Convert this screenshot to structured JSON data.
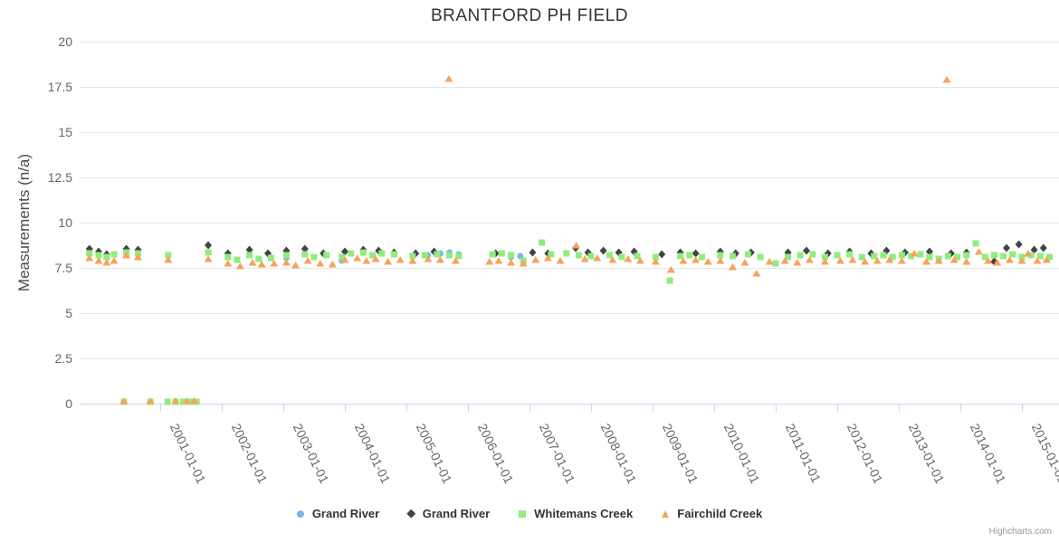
{
  "credits": "Highcharts.com",
  "chart_data": {
    "type": "scatter",
    "title": "BRANTFORD PH FIELD",
    "x_unit": "decimal_year",
    "xAxis": {
      "tick_years": [
        2001,
        2002,
        2003,
        2004,
        2005,
        2006,
        2007,
        2008,
        2009,
        2010,
        2011,
        2012,
        2013,
        2014,
        2015
      ],
      "tick_labels": [
        "2001-01-01",
        "2002-01-01",
        "2003-01-01",
        "2004-01-01",
        "2005-01-01",
        "2006-01-01",
        "2007-01-01",
        "2008-01-01",
        "2009-01-01",
        "2010-01-01",
        "2011-01-01",
        "2012-01-01",
        "2013-01-01",
        "2014-01-01",
        "2015-01-01"
      ],
      "label_rotation_deg": 64,
      "range": [
        1999.7,
        2015.6
      ]
    },
    "yAxis": {
      "title": "Measurements (n/a)",
      "ticks": [
        0,
        2.5,
        5,
        7.5,
        10,
        12.5,
        15,
        17.5,
        20
      ],
      "min": 0,
      "max": 20,
      "grid": true
    },
    "legend_position": "bottom-center",
    "colors": {
      "grid": "#e6e6e6",
      "axis_line": "#ccd6eb",
      "axis_label": "#666666",
      "title_text": "#333333"
    },
    "series": [
      {
        "name": "Grand River",
        "marker": "circle",
        "color": "#7cb5ec",
        "points": [
          [
            2003.05,
            8.05
          ],
          [
            2003.95,
            7.9
          ],
          [
            2005.35,
            8.2
          ],
          [
            2005.55,
            8.3
          ],
          [
            2005.7,
            8.35
          ],
          [
            2005.85,
            8.25
          ],
          [
            2006.7,
            8.1
          ],
          [
            2006.85,
            8.15
          ]
        ]
      },
      {
        "name": "Grand River",
        "marker": "diamond",
        "color": "#434348",
        "points": [
          [
            1999.85,
            8.55
          ],
          [
            2000.0,
            8.4
          ],
          [
            2000.13,
            8.25
          ],
          [
            2000.45,
            8.55
          ],
          [
            2000.64,
            8.5
          ],
          [
            2001.78,
            8.75
          ],
          [
            2002.1,
            8.3
          ],
          [
            2002.45,
            8.5
          ],
          [
            2002.75,
            8.3
          ],
          [
            2003.05,
            8.45
          ],
          [
            2003.35,
            8.55
          ],
          [
            2003.65,
            8.3
          ],
          [
            2004.0,
            8.4
          ],
          [
            2004.3,
            8.5
          ],
          [
            2004.55,
            8.45
          ],
          [
            2004.8,
            8.35
          ],
          [
            2005.15,
            8.3
          ],
          [
            2005.45,
            8.4
          ],
          [
            2006.45,
            8.3
          ],
          [
            2007.05,
            8.35
          ],
          [
            2007.3,
            8.3
          ],
          [
            2007.75,
            8.6
          ],
          [
            2007.95,
            8.35
          ],
          [
            2008.2,
            8.45
          ],
          [
            2008.45,
            8.35
          ],
          [
            2008.7,
            8.4
          ],
          [
            2009.15,
            8.25
          ],
          [
            2009.45,
            8.35
          ],
          [
            2009.7,
            8.3
          ],
          [
            2010.1,
            8.4
          ],
          [
            2010.35,
            8.3
          ],
          [
            2010.6,
            8.35
          ],
          [
            2011.2,
            8.35
          ],
          [
            2011.5,
            8.45
          ],
          [
            2011.85,
            8.3
          ],
          [
            2012.2,
            8.4
          ],
          [
            2012.55,
            8.3
          ],
          [
            2012.8,
            8.45
          ],
          [
            2013.1,
            8.35
          ],
          [
            2013.5,
            8.4
          ],
          [
            2013.85,
            8.3
          ],
          [
            2014.1,
            8.35
          ],
          [
            2014.55,
            7.85
          ],
          [
            2014.75,
            8.6
          ],
          [
            2014.95,
            8.8
          ],
          [
            2015.2,
            8.5
          ],
          [
            2015.35,
            8.6
          ]
        ]
      },
      {
        "name": "Whitemans Creek",
        "marker": "square",
        "color": "#90ed7d",
        "points": [
          [
            2000.41,
            0.1
          ],
          [
            2000.84,
            0.1
          ],
          [
            2001.12,
            0.1
          ],
          [
            2001.25,
            0.1
          ],
          [
            2001.37,
            0.1
          ],
          [
            2001.49,
            0.1
          ],
          [
            2001.59,
            0.1
          ],
          [
            1999.85,
            8.3
          ],
          [
            2000.0,
            8.2
          ],
          [
            2000.13,
            8.1
          ],
          [
            2000.25,
            8.25
          ],
          [
            2000.45,
            8.35
          ],
          [
            2000.64,
            8.3
          ],
          [
            2001.13,
            8.2
          ],
          [
            2001.78,
            8.35
          ],
          [
            2002.1,
            8.1
          ],
          [
            2002.25,
            7.95
          ],
          [
            2002.45,
            8.2
          ],
          [
            2002.6,
            8.0
          ],
          [
            2002.8,
            8.05
          ],
          [
            2003.05,
            8.2
          ],
          [
            2003.35,
            8.25
          ],
          [
            2003.5,
            8.1
          ],
          [
            2003.7,
            8.2
          ],
          [
            2003.95,
            8.1
          ],
          [
            2004.1,
            8.3
          ],
          [
            2004.3,
            8.35
          ],
          [
            2004.45,
            8.2
          ],
          [
            2004.6,
            8.3
          ],
          [
            2004.8,
            8.25
          ],
          [
            2005.1,
            8.15
          ],
          [
            2005.3,
            8.2
          ],
          [
            2005.5,
            8.25
          ],
          [
            2005.7,
            8.2
          ],
          [
            2005.85,
            8.15
          ],
          [
            2006.4,
            8.25
          ],
          [
            2006.55,
            8.3
          ],
          [
            2006.7,
            8.2
          ],
          [
            2006.9,
            7.9
          ],
          [
            2007.2,
            8.9
          ],
          [
            2007.35,
            8.25
          ],
          [
            2007.6,
            8.3
          ],
          [
            2007.8,
            8.2
          ],
          [
            2008.0,
            8.15
          ],
          [
            2008.3,
            8.2
          ],
          [
            2008.5,
            8.1
          ],
          [
            2008.75,
            8.15
          ],
          [
            2009.05,
            8.1
          ],
          [
            2009.28,
            6.8
          ],
          [
            2009.45,
            8.15
          ],
          [
            2009.6,
            8.2
          ],
          [
            2009.8,
            8.1
          ],
          [
            2010.1,
            8.2
          ],
          [
            2010.3,
            8.15
          ],
          [
            2010.55,
            8.25
          ],
          [
            2010.75,
            8.1
          ],
          [
            2011.0,
            7.75
          ],
          [
            2011.2,
            8.1
          ],
          [
            2011.4,
            8.2
          ],
          [
            2011.6,
            8.25
          ],
          [
            2011.8,
            8.1
          ],
          [
            2012.0,
            8.2
          ],
          [
            2012.2,
            8.25
          ],
          [
            2012.4,
            8.1
          ],
          [
            2012.6,
            8.15
          ],
          [
            2012.75,
            8.2
          ],
          [
            2012.9,
            8.1
          ],
          [
            2013.05,
            8.2
          ],
          [
            2013.2,
            8.15
          ],
          [
            2013.35,
            8.25
          ],
          [
            2013.5,
            8.1
          ],
          [
            2013.65,
            8.0
          ],
          [
            2013.8,
            8.15
          ],
          [
            2013.95,
            8.1
          ],
          [
            2014.1,
            8.2
          ],
          [
            2014.25,
            8.85
          ],
          [
            2014.4,
            8.1
          ],
          [
            2014.55,
            8.2
          ],
          [
            2014.7,
            8.15
          ],
          [
            2014.85,
            8.25
          ],
          [
            2015.0,
            8.1
          ],
          [
            2015.15,
            8.2
          ],
          [
            2015.3,
            8.15
          ],
          [
            2015.45,
            8.1
          ]
        ]
      },
      {
        "name": "Fairchild Creek",
        "marker": "triangle",
        "color": "#f7a35c",
        "points": [
          [
            2000.41,
            0.15
          ],
          [
            2000.84,
            0.15
          ],
          [
            2001.25,
            0.15
          ],
          [
            2001.43,
            0.15
          ],
          [
            2001.55,
            0.15
          ],
          [
            2005.69,
            17.95
          ],
          [
            2013.78,
            17.9
          ],
          [
            1999.85,
            8.05
          ],
          [
            2000.0,
            7.9
          ],
          [
            2000.13,
            7.8
          ],
          [
            2000.25,
            7.9
          ],
          [
            2000.45,
            8.2
          ],
          [
            2000.64,
            8.1
          ],
          [
            2001.13,
            7.95
          ],
          [
            2001.78,
            8.0
          ],
          [
            2002.1,
            7.75
          ],
          [
            2002.3,
            7.6
          ],
          [
            2002.5,
            7.8
          ],
          [
            2002.65,
            7.7
          ],
          [
            2002.85,
            7.75
          ],
          [
            2003.05,
            7.8
          ],
          [
            2003.2,
            7.65
          ],
          [
            2003.4,
            7.9
          ],
          [
            2003.6,
            7.75
          ],
          [
            2003.8,
            7.7
          ],
          [
            2004.0,
            7.95
          ],
          [
            2004.2,
            8.05
          ],
          [
            2004.35,
            7.9
          ],
          [
            2004.5,
            8.0
          ],
          [
            2004.7,
            7.85
          ],
          [
            2004.9,
            7.95
          ],
          [
            2005.1,
            7.9
          ],
          [
            2005.35,
            8.0
          ],
          [
            2005.55,
            7.95
          ],
          [
            2005.8,
            7.9
          ],
          [
            2006.35,
            7.85
          ],
          [
            2006.5,
            7.9
          ],
          [
            2006.7,
            7.8
          ],
          [
            2006.9,
            7.75
          ],
          [
            2007.1,
            7.95
          ],
          [
            2007.3,
            8.05
          ],
          [
            2007.5,
            7.9
          ],
          [
            2007.76,
            8.75
          ],
          [
            2007.9,
            8.0
          ],
          [
            2008.1,
            8.05
          ],
          [
            2008.35,
            7.95
          ],
          [
            2008.6,
            8.0
          ],
          [
            2008.8,
            7.9
          ],
          [
            2009.05,
            7.85
          ],
          [
            2009.3,
            7.4
          ],
          [
            2009.5,
            7.9
          ],
          [
            2009.7,
            7.95
          ],
          [
            2009.9,
            7.85
          ],
          [
            2010.1,
            7.9
          ],
          [
            2010.3,
            7.55
          ],
          [
            2010.5,
            7.8
          ],
          [
            2010.69,
            7.2
          ],
          [
            2010.9,
            7.85
          ],
          [
            2011.15,
            7.9
          ],
          [
            2011.35,
            7.8
          ],
          [
            2011.55,
            7.95
          ],
          [
            2011.8,
            7.85
          ],
          [
            2012.05,
            7.9
          ],
          [
            2012.25,
            7.95
          ],
          [
            2012.45,
            7.85
          ],
          [
            2012.65,
            7.9
          ],
          [
            2012.85,
            7.95
          ],
          [
            2013.05,
            7.9
          ],
          [
            2013.25,
            8.3
          ],
          [
            2013.45,
            7.85
          ],
          [
            2013.65,
            7.9
          ],
          [
            2013.9,
            7.95
          ],
          [
            2014.1,
            7.85
          ],
          [
            2014.3,
            8.4
          ],
          [
            2014.45,
            7.9
          ],
          [
            2014.6,
            7.8
          ],
          [
            2014.8,
            7.95
          ],
          [
            2015.0,
            7.9
          ],
          [
            2015.1,
            8.3
          ],
          [
            2015.25,
            7.9
          ],
          [
            2015.4,
            7.95
          ]
        ]
      }
    ]
  }
}
